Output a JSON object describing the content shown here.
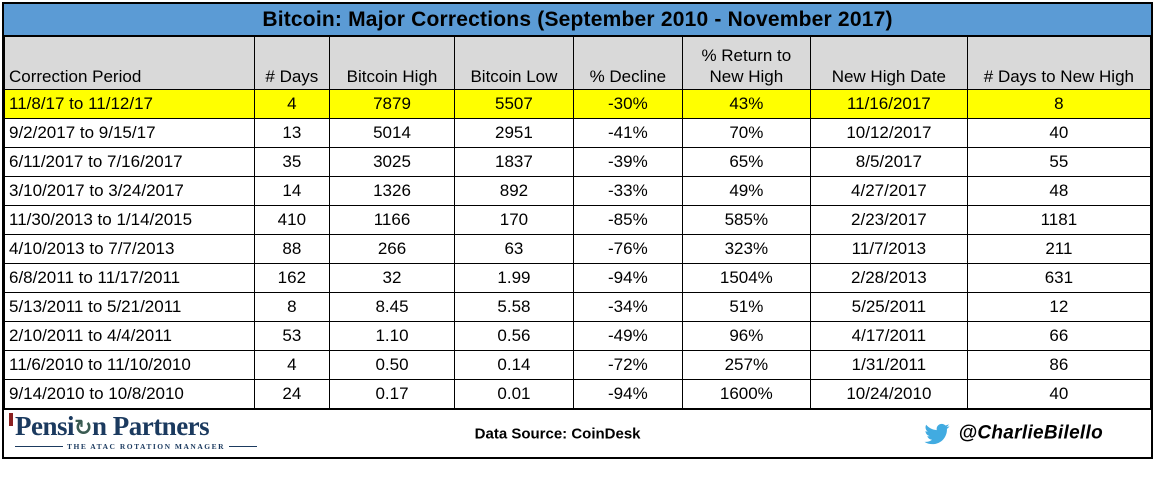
{
  "title": "Bitcoin: Major Corrections (September 2010 - November 2017)",
  "chart_data": {
    "type": "table",
    "title": "Bitcoin: Major Corrections (September 2010 - November 2017)",
    "columns": [
      "Correction Period",
      "# Days",
      "Bitcoin High",
      "Bitcoin Low",
      "% Decline",
      "% Return to New High",
      "New High Date",
      "# Days to New High"
    ],
    "rows": [
      {
        "highlight": true,
        "cells": [
          "11/8/17 to 11/12/17",
          "4",
          "7879",
          "5507",
          "-30%",
          "43%",
          "11/16/2017",
          "8"
        ]
      },
      {
        "highlight": false,
        "cells": [
          "9/2/2017 to 9/15/17",
          "13",
          "5014",
          "2951",
          "-41%",
          "70%",
          "10/12/2017",
          "40"
        ]
      },
      {
        "highlight": false,
        "cells": [
          "6/11/2017 to 7/16/2017",
          "35",
          "3025",
          "1837",
          "-39%",
          "65%",
          "8/5/2017",
          "55"
        ]
      },
      {
        "highlight": false,
        "cells": [
          "3/10/2017 to 3/24/2017",
          "14",
          "1326",
          "892",
          "-33%",
          "49%",
          "4/27/2017",
          "48"
        ]
      },
      {
        "highlight": false,
        "cells": [
          "11/30/2013 to 1/14/2015",
          "410",
          "1166",
          "170",
          "-85%",
          "585%",
          "2/23/2017",
          "1181"
        ]
      },
      {
        "highlight": false,
        "cells": [
          "4/10/2013 to 7/7/2013",
          "88",
          "266",
          "63",
          "-76%",
          "323%",
          "11/7/2013",
          "211"
        ]
      },
      {
        "highlight": false,
        "cells": [
          "6/8/2011 to 11/17/2011",
          "162",
          "32",
          "1.99",
          "-94%",
          "1504%",
          "2/28/2013",
          "631"
        ]
      },
      {
        "highlight": false,
        "cells": [
          "5/13/2011 to 5/21/2011",
          "8",
          "8.45",
          "5.58",
          "-34%",
          "51%",
          "5/25/2011",
          "12"
        ]
      },
      {
        "highlight": false,
        "cells": [
          "2/10/2011 to 4/4/2011",
          "53",
          "1.10",
          "0.56",
          "-49%",
          "96%",
          "4/17/2011",
          "66"
        ]
      },
      {
        "highlight": false,
        "cells": [
          "11/6/2010 to 11/10/2010",
          "4",
          "0.50",
          "0.14",
          "-72%",
          "257%",
          "1/31/2011",
          "86"
        ]
      },
      {
        "highlight": false,
        "cells": [
          "9/14/2010 to 10/8/2010",
          "24",
          "0.17",
          "0.01",
          "-94%",
          "1600%",
          "10/24/2010",
          "40"
        ]
      }
    ]
  },
  "footer": {
    "logo_prefix": "Pensi",
    "logo_suffix": "n Partners",
    "rotation_icon_glyph": "↻",
    "logo_tagline": "THE ATAC ROTATION MANAGER",
    "data_source": "Data Source: CoinDesk",
    "twitter_handle": "@CharlieBilello"
  },
  "colors": {
    "title_bg": "#5B9BD5",
    "header_bg": "#D9D9D9",
    "highlight_row": "#FFFF00",
    "logo_navy": "#1B3A5F",
    "logo_tick": "#8B2020",
    "twitter_blue": "#41ABE1"
  }
}
